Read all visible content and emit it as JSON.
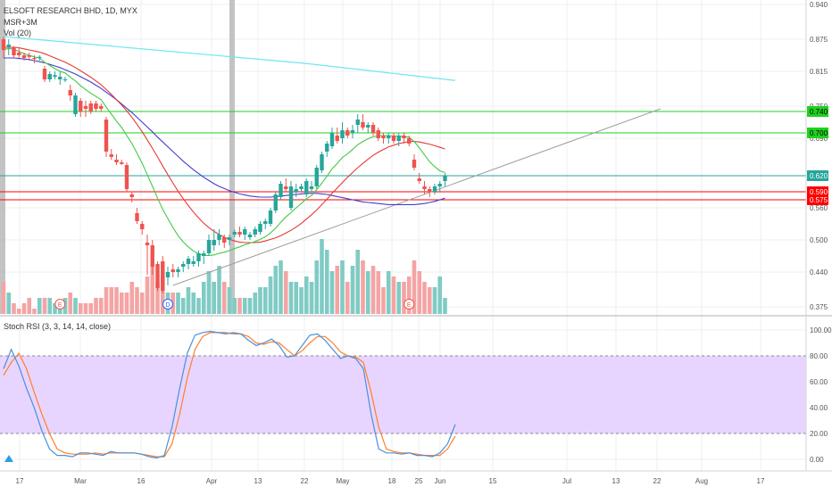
{
  "chart_data": {
    "type": "candlestick",
    "symbol_title": "ELSOFT RESEARCH BHD, 1D, MYX",
    "indicators": [
      "MSR+3M",
      "Vol (20)"
    ],
    "osc_title": "Stoch RSI (3, 3, 14, 14, close)",
    "price_axis_ticks": [
      "0.940",
      "0.875",
      "0.815",
      "0.750",
      "0.690",
      "0.560",
      "0.500",
      "0.440",
      "0.375"
    ],
    "osc_axis_ticks": [
      "100.00",
      "80.00",
      "60.00",
      "40.00",
      "20.00",
      "0.00"
    ],
    "date_ticks": [
      "17",
      "Mar",
      "16",
      "Apr",
      "13",
      "22",
      "May",
      "18",
      "25",
      "Jun",
      "15",
      "Jul",
      "13",
      "22",
      "Aug",
      "17"
    ],
    "horizontal_levels": [
      {
        "price": 0.74,
        "label": "0.740",
        "color": "#1fd11f",
        "text_color": "#000000"
      },
      {
        "price": 0.7,
        "label": "0.700",
        "color": "#1fd11f",
        "text_color": "#000000"
      },
      {
        "price": 0.62,
        "label": "0.620",
        "color": "#26a69a",
        "text_color": "#ffffff"
      },
      {
        "price": 0.59,
        "label": "0.590",
        "color": "#ff0000",
        "text_color": "#ffffff"
      },
      {
        "price": 0.575,
        "label": "0.575",
        "color": "#ff0000",
        "text_color": "#ffffff"
      }
    ],
    "event_markers": [
      {
        "bar": 11,
        "label": "E"
      },
      {
        "bar": 32,
        "label": "D"
      },
      {
        "bar": 79,
        "label": "E"
      }
    ],
    "candles": [
      [
        0.875,
        0.88,
        0.84,
        0.855
      ],
      [
        0.86,
        0.875,
        0.845,
        0.865
      ],
      [
        0.86,
        0.862,
        0.84,
        0.845
      ],
      [
        0.85,
        0.86,
        0.84,
        0.845
      ],
      [
        0.845,
        0.85,
        0.835,
        0.84
      ],
      [
        0.845,
        0.85,
        0.835,
        0.842
      ],
      [
        0.84,
        0.845,
        0.83,
        0.838
      ],
      [
        0.84,
        0.845,
        0.835,
        0.842
      ],
      [
        0.82,
        0.825,
        0.795,
        0.8
      ],
      [
        0.8,
        0.815,
        0.795,
        0.81
      ],
      [
        0.805,
        0.815,
        0.8,
        0.808
      ],
      [
        0.8,
        0.815,
        0.79,
        0.805
      ],
      [
        0.8,
        0.805,
        0.795,
        0.8
      ],
      [
        0.78,
        0.79,
        0.76,
        0.77
      ],
      [
        0.735,
        0.775,
        0.73,
        0.77
      ],
      [
        0.76,
        0.765,
        0.73,
        0.74
      ],
      [
        0.75,
        0.76,
        0.73,
        0.745
      ],
      [
        0.755,
        0.76,
        0.735,
        0.74
      ],
      [
        0.755,
        0.76,
        0.74,
        0.745
      ],
      [
        0.75,
        0.755,
        0.74,
        0.745
      ],
      [
        0.725,
        0.73,
        0.655,
        0.665
      ],
      [
        0.66,
        0.67,
        0.65,
        0.655
      ],
      [
        0.65,
        0.66,
        0.64,
        0.645
      ],
      [
        0.645,
        0.65,
        0.64,
        0.642
      ],
      [
        0.64,
        0.645,
        0.59,
        0.595
      ],
      [
        0.585,
        0.59,
        0.57,
        0.58
      ],
      [
        0.55,
        0.56,
        0.53,
        0.535
      ],
      [
        0.53,
        0.535,
        0.51,
        0.52
      ],
      [
        0.495,
        0.51,
        0.435,
        0.49
      ],
      [
        0.49,
        0.5,
        0.435,
        0.45
      ],
      [
        0.455,
        0.46,
        0.405,
        0.41
      ],
      [
        0.46,
        0.47,
        0.4,
        0.405
      ],
      [
        0.43,
        0.45,
        0.415,
        0.44
      ],
      [
        0.445,
        0.455,
        0.43,
        0.44
      ],
      [
        0.44,
        0.45,
        0.43,
        0.445
      ],
      [
        0.45,
        0.46,
        0.44,
        0.455
      ],
      [
        0.455,
        0.47,
        0.445,
        0.465
      ],
      [
        0.455,
        0.47,
        0.45,
        0.46
      ],
      [
        0.46,
        0.48,
        0.45,
        0.475
      ],
      [
        0.47,
        0.48,
        0.455,
        0.475
      ],
      [
        0.475,
        0.51,
        0.47,
        0.5
      ],
      [
        0.49,
        0.52,
        0.48,
        0.5
      ],
      [
        0.5,
        0.52,
        0.49,
        0.51
      ],
      [
        0.505,
        0.51,
        0.485,
        0.495
      ],
      [
        0.5,
        0.51,
        0.49,
        0.505
      ],
      [
        0.51,
        0.52,
        0.505,
        0.515
      ],
      [
        0.515,
        0.525,
        0.505,
        0.51
      ],
      [
        0.51,
        0.525,
        0.5,
        0.52
      ],
      [
        0.505,
        0.515,
        0.5,
        0.51
      ],
      [
        0.51,
        0.525,
        0.505,
        0.52
      ],
      [
        0.515,
        0.535,
        0.51,
        0.53
      ],
      [
        0.53,
        0.54,
        0.52,
        0.535
      ],
      [
        0.53,
        0.56,
        0.525,
        0.555
      ],
      [
        0.555,
        0.59,
        0.55,
        0.585
      ],
      [
        0.58,
        0.61,
        0.575,
        0.605
      ],
      [
        0.6,
        0.615,
        0.59,
        0.595
      ],
      [
        0.56,
        0.61,
        0.555,
        0.6
      ],
      [
        0.59,
        0.605,
        0.58,
        0.595
      ],
      [
        0.595,
        0.605,
        0.59,
        0.6
      ],
      [
        0.585,
        0.615,
        0.58,
        0.61
      ],
      [
        0.595,
        0.61,
        0.59,
        0.6
      ],
      [
        0.6,
        0.64,
        0.595,
        0.635
      ],
      [
        0.63,
        0.665,
        0.625,
        0.66
      ],
      [
        0.665,
        0.685,
        0.655,
        0.68
      ],
      [
        0.675,
        0.71,
        0.67,
        0.7
      ],
      [
        0.695,
        0.71,
        0.68,
        0.685
      ],
      [
        0.69,
        0.72,
        0.68,
        0.705
      ],
      [
        0.705,
        0.71,
        0.69,
        0.695
      ],
      [
        0.7,
        0.715,
        0.69,
        0.705
      ],
      [
        0.715,
        0.735,
        0.7,
        0.725
      ],
      [
        0.72,
        0.735,
        0.705,
        0.71
      ],
      [
        0.71,
        0.72,
        0.7,
        0.715
      ],
      [
        0.715,
        0.72,
        0.695,
        0.7
      ],
      [
        0.705,
        0.71,
        0.685,
        0.69
      ],
      [
        0.695,
        0.7,
        0.68,
        0.69
      ],
      [
        0.69,
        0.7,
        0.68,
        0.695
      ],
      [
        0.695,
        0.7,
        0.68,
        0.685
      ],
      [
        0.685,
        0.7,
        0.675,
        0.695
      ],
      [
        0.695,
        0.7,
        0.68,
        0.69
      ],
      [
        0.69,
        0.695,
        0.675,
        0.68
      ],
      [
        0.65,
        0.66,
        0.63,
        0.635
      ],
      [
        0.615,
        0.625,
        0.605,
        0.61
      ],
      [
        0.6,
        0.61,
        0.585,
        0.595
      ],
      [
        0.595,
        0.6,
        0.58,
        0.59
      ],
      [
        0.59,
        0.605,
        0.585,
        0.6
      ],
      [
        0.6,
        0.61,
        0.59,
        0.605
      ],
      [
        0.61,
        0.625,
        0.6,
        0.62
      ]
    ],
    "volumes": [
      0.06,
      0.04,
      0.02,
      0.01,
      0.02,
      0.03,
      0.01,
      0.03,
      0.03,
      0.03,
      0.02,
      0.02,
      0.03,
      0.04,
      0.03,
      0.02,
      0.02,
      0.02,
      0.03,
      0.03,
      0.05,
      0.05,
      0.05,
      0.04,
      0.04,
      0.06,
      0.05,
      0.04,
      0.07,
      0.09,
      0.06,
      0.07,
      0.04,
      0.04,
      0.04,
      0.03,
      0.05,
      0.04,
      0.03,
      0.06,
      0.08,
      0.06,
      0.09,
      0.06,
      0.05,
      0.03,
      0.03,
      0.03,
      0.03,
      0.04,
      0.05,
      0.05,
      0.07,
      0.09,
      0.1,
      0.08,
      0.06,
      0.06,
      0.05,
      0.07,
      0.06,
      0.1,
      0.14,
      0.12,
      0.08,
      0.09,
      0.1,
      0.06,
      0.09,
      0.12,
      0.1,
      0.08,
      0.09,
      0.08,
      0.05,
      0.08,
      0.07,
      0.06,
      0.06,
      0.07,
      0.1,
      0.08,
      0.06,
      0.05,
      0.05,
      0.07,
      0.03
    ],
    "sma_slow_cyan": {
      "start_bar": 0,
      "values": [
        0.88,
        0.855,
        0.83,
        0.798
      ]
    },
    "ma_fast_green": [
      0.855,
      0.858,
      0.856,
      0.852,
      0.848,
      0.845,
      0.842,
      0.84,
      0.832,
      0.826,
      0.82,
      0.815,
      0.812,
      0.804,
      0.797,
      0.788,
      0.781,
      0.774,
      0.768,
      0.762,
      0.748,
      0.735,
      0.722,
      0.71,
      0.695,
      0.68,
      0.662,
      0.643,
      0.622,
      0.6,
      0.578,
      0.557,
      0.54,
      0.523,
      0.508,
      0.496,
      0.487,
      0.479,
      0.474,
      0.471,
      0.471,
      0.472,
      0.475,
      0.477,
      0.48,
      0.484,
      0.487,
      0.491,
      0.494,
      0.497,
      0.501,
      0.506,
      0.513,
      0.522,
      0.533,
      0.543,
      0.551,
      0.56,
      0.568,
      0.577,
      0.583,
      0.594,
      0.606,
      0.619,
      0.633,
      0.643,
      0.654,
      0.661,
      0.669,
      0.678,
      0.684,
      0.689,
      0.693,
      0.694,
      0.695,
      0.695,
      0.694,
      0.694,
      0.693,
      0.692,
      0.684,
      0.672,
      0.659,
      0.646,
      0.637,
      0.629,
      0.626
    ],
    "ma_mid_red": [
      0.86,
      0.86,
      0.86,
      0.859,
      0.857,
      0.855,
      0.853,
      0.851,
      0.848,
      0.844,
      0.84,
      0.836,
      0.832,
      0.827,
      0.822,
      0.816,
      0.81,
      0.804,
      0.797,
      0.79,
      0.781,
      0.772,
      0.762,
      0.752,
      0.741,
      0.729,
      0.716,
      0.702,
      0.687,
      0.671,
      0.655,
      0.638,
      0.622,
      0.606,
      0.591,
      0.577,
      0.564,
      0.552,
      0.541,
      0.531,
      0.523,
      0.516,
      0.51,
      0.505,
      0.501,
      0.498,
      0.496,
      0.495,
      0.495,
      0.495,
      0.496,
      0.498,
      0.501,
      0.504,
      0.508,
      0.513,
      0.518,
      0.524,
      0.531,
      0.539,
      0.547,
      0.556,
      0.566,
      0.576,
      0.587,
      0.597,
      0.607,
      0.617,
      0.626,
      0.635,
      0.643,
      0.651,
      0.658,
      0.664,
      0.669,
      0.674,
      0.677,
      0.68,
      0.682,
      0.684,
      0.684,
      0.683,
      0.681,
      0.679,
      0.676,
      0.673,
      0.67
    ],
    "ma_slow_blue": [
      0.84,
      0.84,
      0.84,
      0.839,
      0.838,
      0.837,
      0.835,
      0.833,
      0.831,
      0.828,
      0.825,
      0.822,
      0.818,
      0.814,
      0.81,
      0.805,
      0.8,
      0.795,
      0.789,
      0.783,
      0.776,
      0.769,
      0.762,
      0.754,
      0.746,
      0.738,
      0.729,
      0.72,
      0.711,
      0.702,
      0.692,
      0.683,
      0.674,
      0.665,
      0.656,
      0.647,
      0.639,
      0.631,
      0.624,
      0.617,
      0.611,
      0.605,
      0.6,
      0.596,
      0.592,
      0.589,
      0.586,
      0.584,
      0.582,
      0.581,
      0.58,
      0.58,
      0.58,
      0.581,
      0.582,
      0.583,
      0.584,
      0.585,
      0.586,
      0.587,
      0.587,
      0.587,
      0.586,
      0.585,
      0.583,
      0.581,
      0.579,
      0.577,
      0.575,
      0.573,
      0.571,
      0.57,
      0.569,
      0.568,
      0.567,
      0.566,
      0.566,
      0.566,
      0.566,
      0.566,
      0.566,
      0.567,
      0.568,
      0.57,
      0.572,
      0.575,
      0.578
    ],
    "trendline_gray": {
      "from": {
        "bar": 33,
        "price": 0.415
      },
      "to": {
        "bar": 128,
        "price": 0.745
      }
    },
    "stoch_k_blue": [
      70,
      85,
      72,
      55,
      40,
      22,
      8,
      3,
      3,
      2,
      5,
      5,
      4,
      3,
      6,
      5,
      5,
      5,
      4,
      2,
      1,
      3,
      25,
      55,
      82,
      96,
      98,
      99,
      98,
      97,
      98,
      97,
      92,
      88,
      90,
      93,
      88,
      79,
      80,
      88,
      96,
      97,
      92,
      85,
      78,
      80,
      78,
      70,
      35,
      8,
      5,
      5,
      4,
      5,
      3,
      3,
      2,
      5,
      12,
      27
    ],
    "stoch_d_orange": [
      65,
      75,
      82,
      70,
      52,
      35,
      20,
      8,
      5,
      4,
      4,
      4,
      5,
      4,
      5,
      5,
      5,
      5,
      4,
      3,
      2,
      2,
      12,
      35,
      63,
      85,
      95,
      98,
      98,
      98,
      97,
      97,
      95,
      90,
      89,
      91,
      90,
      85,
      80,
      84,
      90,
      95,
      95,
      90,
      83,
      80,
      79,
      75,
      52,
      25,
      8,
      6,
      5,
      5,
      4,
      3,
      3,
      3,
      8,
      18
    ],
    "oscillator_band": {
      "upper": 80,
      "lower": 20
    }
  }
}
